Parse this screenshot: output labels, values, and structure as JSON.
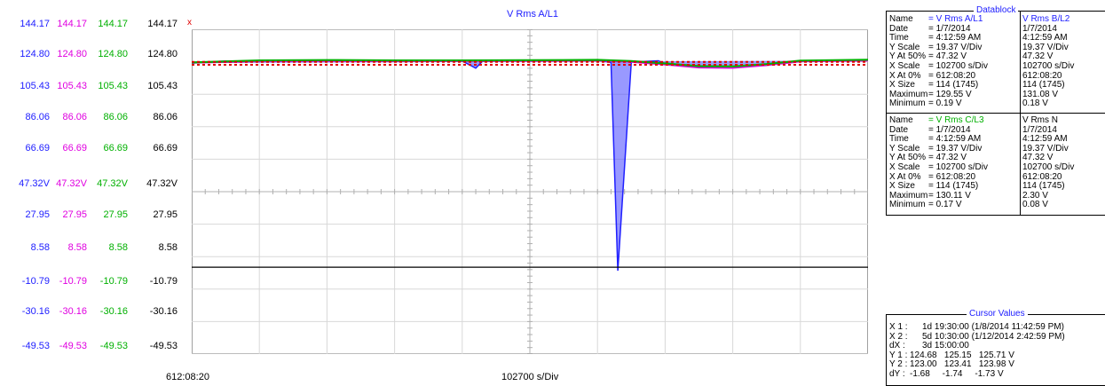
{
  "plot": {
    "title": "V Rms A/L1",
    "x_start": "612:08:20",
    "x_scale": "102700 s/Div",
    "cursor_marker": "x",
    "y_columns": [
      {
        "color": "#2020ff",
        "labels": [
          "144.17",
          "124.80",
          "105.43",
          "86.06",
          "66.69",
          "47.32V",
          "27.95",
          "8.58",
          "-10.79",
          "-30.16",
          "-49.53"
        ]
      },
      {
        "color": "#e000e0",
        "labels": [
          "144.17",
          "124.80",
          "105.43",
          "86.06",
          "66.69",
          "47.32V",
          "27.95",
          "8.58",
          "-10.79",
          "-30.16",
          "-49.53"
        ]
      },
      {
        "color": "#00b000",
        "labels": [
          "144.17",
          "124.80",
          "105.43",
          "86.06",
          "66.69",
          "47.32V",
          "27.95",
          "8.58",
          "-10.79",
          "-30.16",
          "-49.53"
        ]
      },
      {
        "color": "#000000",
        "labels": [
          "144.17",
          "124.80",
          "105.43",
          "86.06",
          "66.69",
          "47.32V",
          "27.95",
          "8.58",
          "-10.79",
          "-30.16",
          "-49.53"
        ]
      }
    ]
  },
  "chart_data": {
    "type": "line",
    "title": "V Rms A/L1",
    "ylim": [
      -49.53,
      144.17
    ],
    "y_ticks": [
      144.17,
      124.8,
      105.43,
      86.06,
      66.69,
      47.32,
      27.95,
      8.58,
      -10.79,
      -30.16,
      -49.53
    ],
    "x_divisions": 10,
    "series": [
      {
        "name": "V Rms A/L1",
        "color": "#2020ff",
        "x": [
          0,
          0.5,
          1,
          1.5,
          2,
          2.5,
          3,
          3.5,
          4,
          4.2,
          4.3,
          4.5,
          5,
          5.5,
          6,
          6.2,
          6.3,
          6.5,
          6.9,
          7,
          7.5,
          8,
          8.5,
          9,
          9.5,
          10
        ],
        "y": [
          124.0,
          125.2,
          125.0,
          125.4,
          125.2,
          125.3,
          125.0,
          125.4,
          125.3,
          121.0,
          125.1,
          125.4,
          125.3,
          125.4,
          125.5,
          124.5,
          0.19,
          124.6,
          125.4,
          123.5,
          122.0,
          121.8,
          123.0,
          125.2,
          125.5,
          125.6
        ]
      },
      {
        "name": "V Rms B/L2",
        "color": "#e000e0",
        "x": [
          0,
          1,
          2,
          3,
          4,
          5,
          6,
          6.5,
          7,
          7.5,
          8,
          8.5,
          9,
          10
        ],
        "y": [
          124.2,
          125.1,
          125.3,
          125.1,
          125.2,
          125.3,
          125.5,
          124.8,
          123.2,
          121.4,
          121.2,
          122.8,
          125.0,
          125.5
        ]
      },
      {
        "name": "V Rms C/L3",
        "color": "#00b000",
        "x": [
          0,
          1,
          2,
          3,
          4,
          5,
          6,
          6.5,
          7,
          7.5,
          8,
          8.5,
          9,
          10
        ],
        "y": [
          124.4,
          125.6,
          125.8,
          125.6,
          125.6,
          125.7,
          125.9,
          125.2,
          123.8,
          122.2,
          122.0,
          123.4,
          125.5,
          126.0
        ]
      },
      {
        "name": "Cursor Y1",
        "color": "#e00000",
        "dashed": true,
        "x": [
          0,
          10
        ],
        "y": [
          124.68,
          124.68
        ]
      },
      {
        "name": "Cursor Y2",
        "color": "#e00000",
        "dashed": true,
        "x": [
          0,
          10
        ],
        "y": [
          123.0,
          123.0
        ]
      },
      {
        "name": "V Rms N",
        "color": "#000000",
        "x": [
          0,
          10
        ],
        "y": [
          2.3,
          2.3
        ]
      }
    ]
  },
  "datablock": {
    "title": "Datablock",
    "top": {
      "labels": [
        "Name",
        "Date",
        "Time",
        "Y Scale",
        "Y At 50%",
        "X Scale",
        "X At 0%",
        "X Size",
        "Maximum",
        "Minimum"
      ],
      "col1": [
        "= V Rms A/L1",
        "= 1/7/2014",
        "= 4:12:59 AM",
        "= 19.37 V/Div",
        "= 47.32 V",
        "= 102700 s/Div",
        "= 612:08:20",
        "= 114 (1745)",
        "= 129.55 V",
        "= 0.19 V"
      ],
      "col2": [
        "V Rms B/L2",
        "1/7/2014",
        "4:12:59 AM",
        "19.37 V/Div",
        "47.32 V",
        "102700 s/Div",
        "612:08:20",
        "114 (1745)",
        "131.08 V",
        "0.18 V"
      ]
    },
    "bottom": {
      "labels": [
        "Name",
        "Date",
        "Time",
        "Y Scale",
        "Y At 50%",
        "X Scale",
        "X At 0%",
        "X Size",
        "Maximum",
        "Minimum"
      ],
      "col1": [
        "= V Rms C/L3",
        "= 1/7/2014",
        "= 4:12:59 AM",
        "= 19.37 V/Div",
        "= 47.32 V",
        "= 102700 s/Div",
        "= 612:08:20",
        "= 114 (1745)",
        "= 130.11 V",
        "= 0.17 V"
      ],
      "col2": [
        "V Rms N",
        "1/7/2014",
        "4:12:59 AM",
        "19.37 V/Div",
        "47.32 V",
        "102700 s/Div",
        "612:08:20",
        "114 (1745)",
        "2.30 V",
        "0.08 V"
      ]
    },
    "name_colors": {
      "a": "#2020ff",
      "b": "#2020ff",
      "c": "#00b000",
      "n": "#000000"
    }
  },
  "cursor_values": {
    "title": "Cursor Values",
    "rows": [
      {
        "label": "X 1 :",
        "value": "1d 19:30:00 (1/8/2014 11:42:59 PM)"
      },
      {
        "label": "X 2 :",
        "value": "5d 10:30:00 (1/12/2014 2:42:59 PM)"
      },
      {
        "label": "dX :",
        "value": "3d 15:00:00"
      },
      {
        "label": "Y 1 :",
        "value": "124.68   125.15   125.71 V"
      },
      {
        "label": "Y 2 :",
        "value": "123.00   123.41   123.98 V"
      },
      {
        "label": "dY :",
        "value": "-1.68     -1.74     -1.73 V"
      }
    ]
  }
}
